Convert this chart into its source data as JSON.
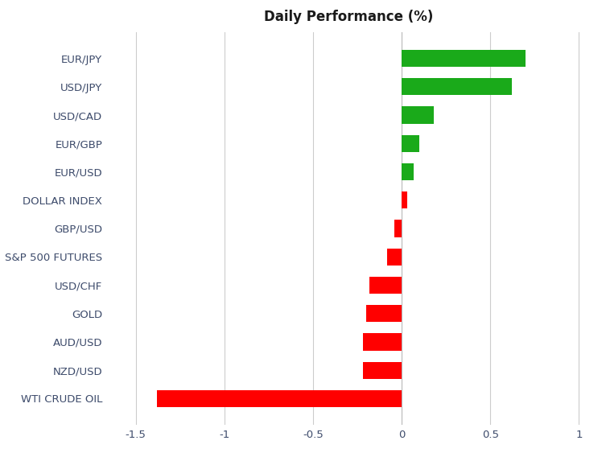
{
  "title": "Daily Performance (%)",
  "categories": [
    "WTI CRUDE OIL",
    "NZD/USD",
    "AUD/USD",
    "GOLD",
    "USD/CHF",
    "S&P 500 FUTURES",
    "GBP/USD",
    "DOLLAR INDEX",
    "EUR/USD",
    "EUR/GBP",
    "USD/CAD",
    "USD/JPY",
    "EUR/JPY"
  ],
  "values": [
    -1.38,
    -0.22,
    -0.22,
    -0.2,
    -0.18,
    -0.08,
    -0.04,
    0.03,
    0.07,
    0.1,
    0.18,
    0.62,
    0.7
  ],
  "bar_colors": [
    "#FF0000",
    "#FF0000",
    "#FF0000",
    "#FF0000",
    "#FF0000",
    "#FF0000",
    "#FF0000",
    "#FF0000",
    "#1AAA1A",
    "#1AAA1A",
    "#1AAA1A",
    "#1AAA1A",
    "#1AAA1A"
  ],
  "xlim": [
    -1.65,
    1.05
  ],
  "xticks": [
    -1.5,
    -1.0,
    -0.5,
    0.0,
    0.5,
    1.0
  ],
  "title_fontsize": 12,
  "label_fontsize": 9.5,
  "tick_fontsize": 9.5,
  "background_color": "#FFFFFF",
  "grid_color": "#CCCCCC",
  "label_color": "#3D4B6B",
  "title_color": "#1A1A1A",
  "bar_height": 0.6
}
